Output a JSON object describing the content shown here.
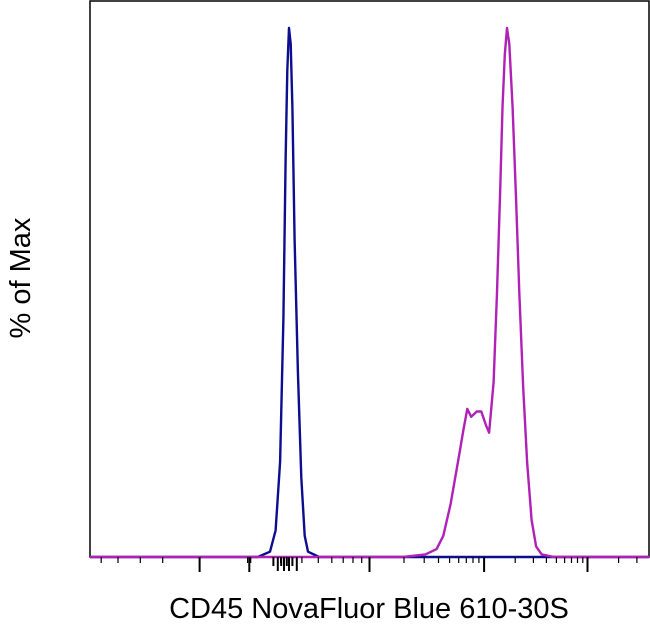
{
  "chart_data": {
    "type": "line",
    "chart_kind": "flow cytometry histogram overlay",
    "xlabel": "CD45 NovaFluor Blue 610-30S",
    "ylabel": "% of Max",
    "xscale": "biexponential (log-like)",
    "ylim": [
      0,
      100
    ],
    "grid": false,
    "legend": "none",
    "series": [
      {
        "color": "#0d0d8f",
        "points": [
          [
            0.3,
            0
          ],
          [
            0.322,
            1
          ],
          [
            0.332,
            5
          ],
          [
            0.34,
            18
          ],
          [
            0.346,
            45
          ],
          [
            0.35,
            75
          ],
          [
            0.353,
            92
          ],
          [
            0.356,
            100
          ],
          [
            0.359,
            97
          ],
          [
            0.362,
            85
          ],
          [
            0.366,
            60
          ],
          [
            0.372,
            35
          ],
          [
            0.378,
            15
          ],
          [
            0.384,
            4
          ],
          [
            0.39,
            1
          ],
          [
            0.41,
            0
          ]
        ]
      },
      {
        "color": "#b021b6",
        "points": [
          [
            0.56,
            0
          ],
          [
            0.6,
            0.5
          ],
          [
            0.62,
            1.5
          ],
          [
            0.632,
            4
          ],
          [
            0.645,
            10
          ],
          [
            0.66,
            19
          ],
          [
            0.668,
            24
          ],
          [
            0.675,
            28
          ],
          [
            0.682,
            26.5
          ],
          [
            0.692,
            27.5
          ],
          [
            0.7,
            27.5
          ],
          [
            0.708,
            25
          ],
          [
            0.714,
            23.5
          ],
          [
            0.722,
            33
          ],
          [
            0.728,
            50
          ],
          [
            0.734,
            70
          ],
          [
            0.738,
            85
          ],
          [
            0.742,
            95
          ],
          [
            0.746,
            100
          ],
          [
            0.75,
            97
          ],
          [
            0.756,
            85
          ],
          [
            0.762,
            68
          ],
          [
            0.768,
            50
          ],
          [
            0.775,
            32
          ],
          [
            0.782,
            18
          ],
          [
            0.79,
            7
          ],
          [
            0.798,
            2
          ],
          [
            0.808,
            0.5
          ],
          [
            0.83,
            0
          ]
        ]
      }
    ]
  }
}
